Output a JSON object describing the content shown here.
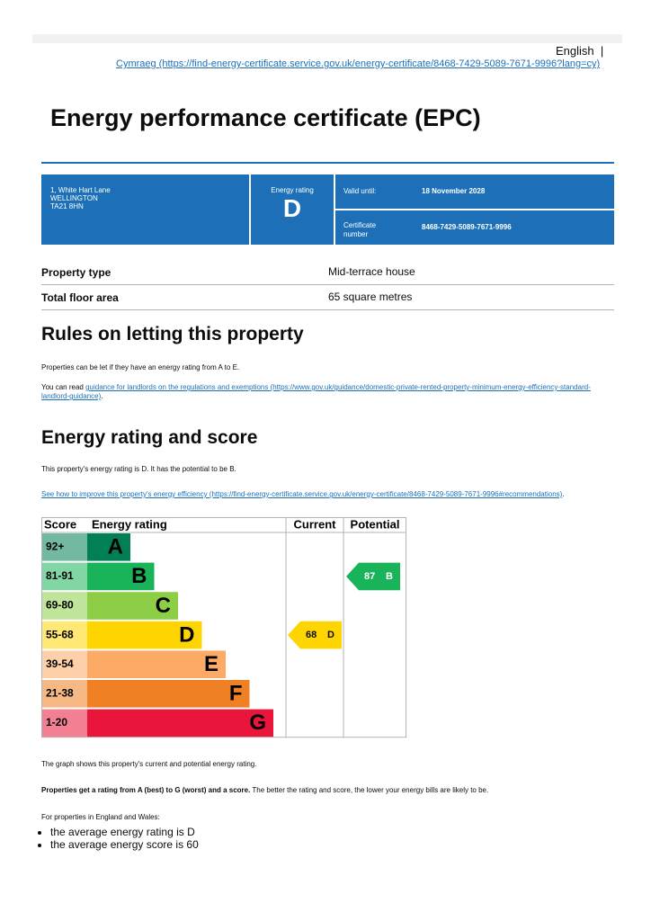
{
  "header": {
    "language": "English",
    "welsh_link": "Cymraeg (https://find-energy-certificate.service.gov.uk/energy-certificate/8468-7429-5089-7671-9996?lang=cy)"
  },
  "title": "Energy performance certificate (EPC)",
  "summary": {
    "address": [
      "1, White Hart Lane",
      "WELLINGTON",
      "TA21 8HN"
    ],
    "energy_rating_label": "Energy rating",
    "energy_rating": "D",
    "valid_until_label": "Valid until:",
    "valid_until": "18 November 2028",
    "certificate_number_label": "Certificate number",
    "certificate_number": "8468-7429-5089-7671-9996"
  },
  "property": {
    "rows": [
      [
        "Property type",
        "Mid-terrace house"
      ],
      [
        "Total floor area",
        "65 square metres"
      ]
    ]
  },
  "letting": {
    "heading": "Rules on letting this property",
    "paragraph": "Properties can be let if they have an energy rating from A to E.",
    "read_prefix": "You can read",
    "read_link": "guidance for landlords on the regulations and exemptions (https://www.gov.uk/guidance/domestic-private-rented-property-minimum-energy-efficiency-standard-landlord-guidance)",
    "read_suffix": "."
  },
  "rating": {
    "heading": "Energy rating and score",
    "paragraph": "This property's energy rating is D. It has the potential to be B.",
    "improve_link": "See how to improve this property's energy efficiency (https://find-energy-certificate.service.gov.uk/energy-certificate/8468-7429-5089-7671-9996#recommendations)",
    "improve_suffix": "."
  },
  "epc_chart": {
    "headers": [
      "Score",
      "Energy rating",
      "Current",
      "Potential"
    ],
    "bands": [
      {
        "score": "92+",
        "letter": "A",
        "color": "#008054"
      },
      {
        "score": "81-91",
        "letter": "B",
        "color": "#19b459"
      },
      {
        "score": "69-80",
        "letter": "C",
        "color": "#8dce46"
      },
      {
        "score": "55-68",
        "letter": "D",
        "color": "#ffd500"
      },
      {
        "score": "39-54",
        "letter": "E",
        "color": "#fcaa65"
      },
      {
        "score": "21-38",
        "letter": "F",
        "color": "#ef8023"
      },
      {
        "score": "1-20",
        "letter": "G",
        "color": "#e9153b"
      }
    ],
    "current": {
      "score": 68,
      "letter": "D"
    },
    "potential": {
      "score": 87,
      "letter": "B"
    }
  },
  "notes": {
    "graph_note": "The graph shows this property's current and potential energy rating.",
    "bold_part": "Properties get a rating from A (best) to G (worst) and a score.",
    "rest_part": "The better the rating and score, the lower your energy bills are likely to be.",
    "england_wales": "For properties in England and Wales:",
    "bullets": [
      "the average energy rating is D",
      "the average energy score is 60"
    ]
  }
}
